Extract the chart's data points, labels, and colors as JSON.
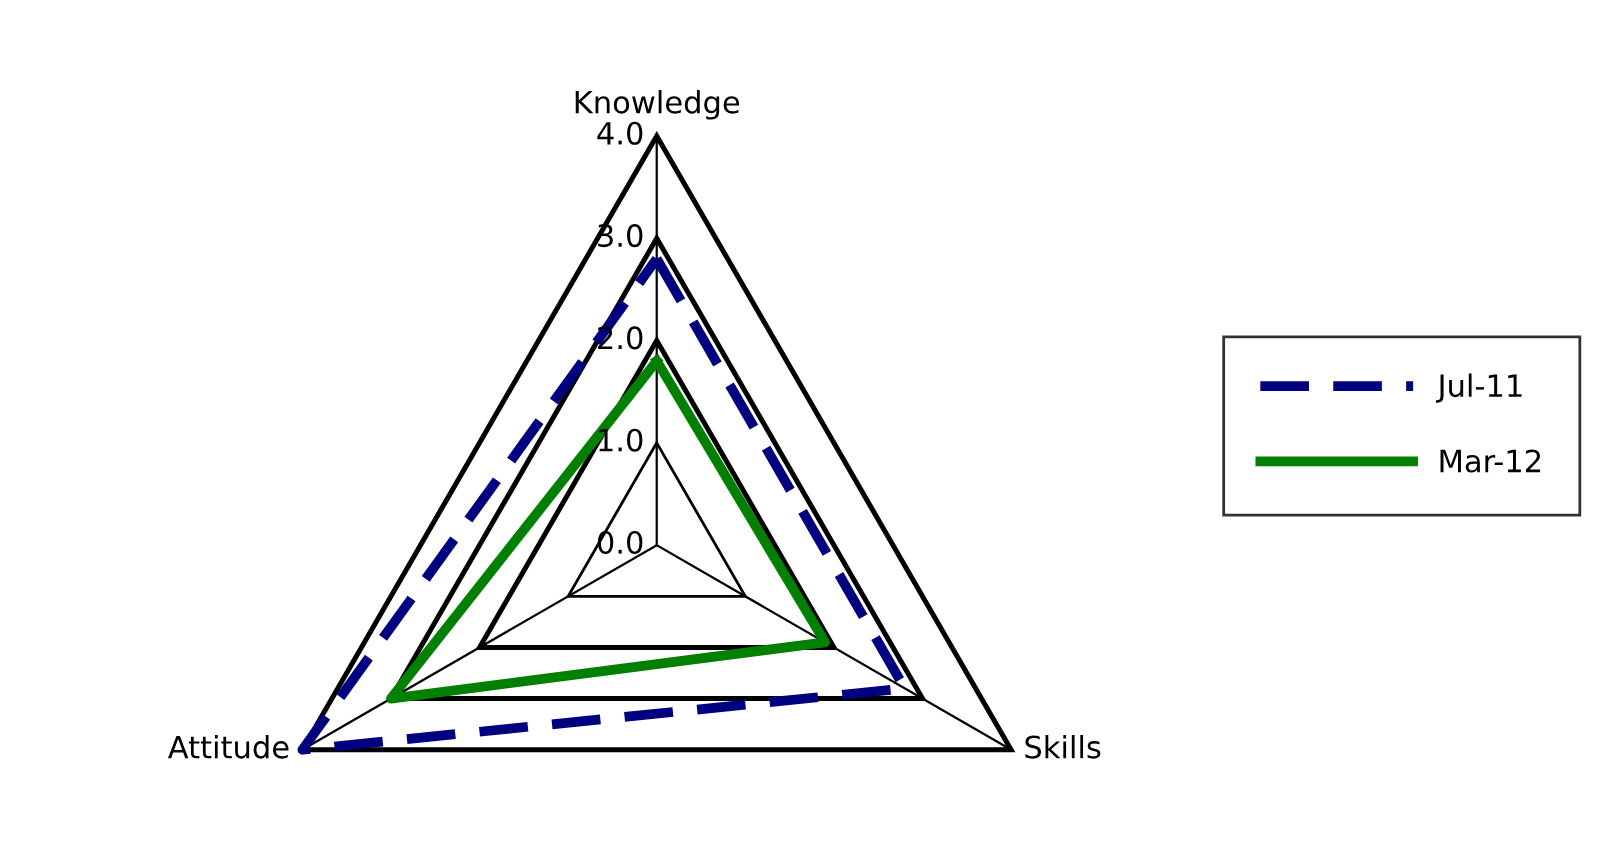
{
  "chart_data": {
    "type": "radar",
    "categories": [
      "Knowledge",
      "Skills",
      "Attitude"
    ],
    "series": [
      {
        "name": "Jul-11",
        "color": "#000080",
        "values": [
          2.8,
          2.8,
          4.0
        ],
        "line_style": "dashed"
      },
      {
        "name": "Mar-12",
        "color": "#008000",
        "values": [
          1.8,
          1.9,
          3.0
        ],
        "line_style": "solid"
      }
    ],
    "ylim": [
      0,
      4.0
    ],
    "yticks": [
      {
        "value": 0,
        "label": "0.0"
      },
      {
        "value": 1,
        "label": "1.0"
      },
      {
        "value": 2,
        "label": "2.0"
      },
      {
        "value": 3,
        "label": "3.0"
      },
      {
        "value": 4,
        "label": "4.0"
      }
    ],
    "legend": "right",
    "marker": "none",
    "grid": true
  }
}
